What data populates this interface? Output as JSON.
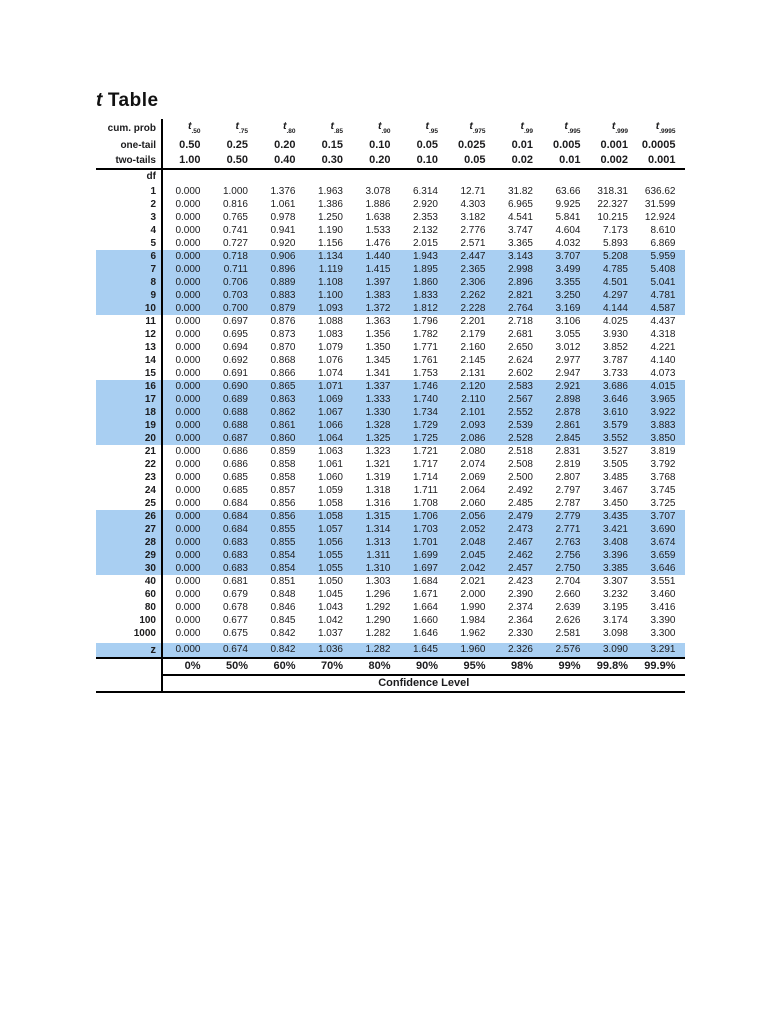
{
  "page_background": "#ffffff",
  "colors": {
    "highlight_row": "#a9cff2",
    "line": "#000000",
    "text": "#1c1c1e"
  },
  "title": {
    "t_symbol": "t",
    "rest": "Table"
  },
  "header": {
    "cum_prob_label": "cum. prob",
    "one_tail_label": "one-tail",
    "two_tails_label": "two-tails",
    "df_label": "df",
    "t_symbol": "t",
    "t_subscripts": [
      ".50",
      ".75",
      ".80",
      ".85",
      ".90",
      ".95",
      ".975",
      ".99",
      ".995",
      ".999",
      ".9995"
    ],
    "one_tail": [
      "0.50",
      "0.25",
      "0.20",
      "0.15",
      "0.10",
      "0.05",
      "0.025",
      "0.01",
      "0.005",
      "0.001",
      "0.0005"
    ],
    "two_tails": [
      "1.00",
      "0.50",
      "0.40",
      "0.30",
      "0.20",
      "0.10",
      "0.05",
      "0.02",
      "0.01",
      "0.002",
      "0.001"
    ]
  },
  "rows": [
    {
      "df": "1",
      "highlight": false,
      "values": [
        "0.000",
        "1.000",
        "1.376",
        "1.963",
        "3.078",
        "6.314",
        "12.71",
        "31.82",
        "63.66",
        "318.31",
        "636.62"
      ]
    },
    {
      "df": "2",
      "highlight": false,
      "values": [
        "0.000",
        "0.816",
        "1.061",
        "1.386",
        "1.886",
        "2.920",
        "4.303",
        "6.965",
        "9.925",
        "22.327",
        "31.599"
      ]
    },
    {
      "df": "3",
      "highlight": false,
      "values": [
        "0.000",
        "0.765",
        "0.978",
        "1.250",
        "1.638",
        "2.353",
        "3.182",
        "4.541",
        "5.841",
        "10.215",
        "12.924"
      ]
    },
    {
      "df": "4",
      "highlight": false,
      "values": [
        "0.000",
        "0.741",
        "0.941",
        "1.190",
        "1.533",
        "2.132",
        "2.776",
        "3.747",
        "4.604",
        "7.173",
        "8.610"
      ]
    },
    {
      "df": "5",
      "highlight": false,
      "values": [
        "0.000",
        "0.727",
        "0.920",
        "1.156",
        "1.476",
        "2.015",
        "2.571",
        "3.365",
        "4.032",
        "5.893",
        "6.869"
      ]
    },
    {
      "df": "6",
      "highlight": true,
      "values": [
        "0.000",
        "0.718",
        "0.906",
        "1.134",
        "1.440",
        "1.943",
        "2.447",
        "3.143",
        "3.707",
        "5.208",
        "5.959"
      ]
    },
    {
      "df": "7",
      "highlight": true,
      "values": [
        "0.000",
        "0.711",
        "0.896",
        "1.119",
        "1.415",
        "1.895",
        "2.365",
        "2.998",
        "3.499",
        "4.785",
        "5.408"
      ]
    },
    {
      "df": "8",
      "highlight": true,
      "values": [
        "0.000",
        "0.706",
        "0.889",
        "1.108",
        "1.397",
        "1.860",
        "2.306",
        "2.896",
        "3.355",
        "4.501",
        "5.041"
      ]
    },
    {
      "df": "9",
      "highlight": true,
      "values": [
        "0.000",
        "0.703",
        "0.883",
        "1.100",
        "1.383",
        "1.833",
        "2.262",
        "2.821",
        "3.250",
        "4.297",
        "4.781"
      ]
    },
    {
      "df": "10",
      "highlight": true,
      "values": [
        "0.000",
        "0.700",
        "0.879",
        "1.093",
        "1.372",
        "1.812",
        "2.228",
        "2.764",
        "3.169",
        "4.144",
        "4.587"
      ]
    },
    {
      "df": "11",
      "highlight": false,
      "values": [
        "0.000",
        "0.697",
        "0.876",
        "1.088",
        "1.363",
        "1.796",
        "2.201",
        "2.718",
        "3.106",
        "4.025",
        "4.437"
      ]
    },
    {
      "df": "12",
      "highlight": false,
      "values": [
        "0.000",
        "0.695",
        "0.873",
        "1.083",
        "1.356",
        "1.782",
        "2.179",
        "2.681",
        "3.055",
        "3.930",
        "4.318"
      ]
    },
    {
      "df": "13",
      "highlight": false,
      "values": [
        "0.000",
        "0.694",
        "0.870",
        "1.079",
        "1.350",
        "1.771",
        "2.160",
        "2.650",
        "3.012",
        "3.852",
        "4.221"
      ]
    },
    {
      "df": "14",
      "highlight": false,
      "values": [
        "0.000",
        "0.692",
        "0.868",
        "1.076",
        "1.345",
        "1.761",
        "2.145",
        "2.624",
        "2.977",
        "3.787",
        "4.140"
      ]
    },
    {
      "df": "15",
      "highlight": false,
      "values": [
        "0.000",
        "0.691",
        "0.866",
        "1.074",
        "1.341",
        "1.753",
        "2.131",
        "2.602",
        "2.947",
        "3.733",
        "4.073"
      ]
    },
    {
      "df": "16",
      "highlight": true,
      "values": [
        "0.000",
        "0.690",
        "0.865",
        "1.071",
        "1.337",
        "1.746",
        "2.120",
        "2.583",
        "2.921",
        "3.686",
        "4.015"
      ]
    },
    {
      "df": "17",
      "highlight": true,
      "values": [
        "0.000",
        "0.689",
        "0.863",
        "1.069",
        "1.333",
        "1.740",
        "2.110",
        "2.567",
        "2.898",
        "3.646",
        "3.965"
      ]
    },
    {
      "df": "18",
      "highlight": true,
      "values": [
        "0.000",
        "0.688",
        "0.862",
        "1.067",
        "1.330",
        "1.734",
        "2.101",
        "2.552",
        "2.878",
        "3.610",
        "3.922"
      ]
    },
    {
      "df": "19",
      "highlight": true,
      "values": [
        "0.000",
        "0.688",
        "0.861",
        "1.066",
        "1.328",
        "1.729",
        "2.093",
        "2.539",
        "2.861",
        "3.579",
        "3.883"
      ]
    },
    {
      "df": "20",
      "highlight": true,
      "values": [
        "0.000",
        "0.687",
        "0.860",
        "1.064",
        "1.325",
        "1.725",
        "2.086",
        "2.528",
        "2.845",
        "3.552",
        "3.850"
      ]
    },
    {
      "df": "21",
      "highlight": false,
      "values": [
        "0.000",
        "0.686",
        "0.859",
        "1.063",
        "1.323",
        "1.721",
        "2.080",
        "2.518",
        "2.831",
        "3.527",
        "3.819"
      ]
    },
    {
      "df": "22",
      "highlight": false,
      "values": [
        "0.000",
        "0.686",
        "0.858",
        "1.061",
        "1.321",
        "1.717",
        "2.074",
        "2.508",
        "2.819",
        "3.505",
        "3.792"
      ]
    },
    {
      "df": "23",
      "highlight": false,
      "values": [
        "0.000",
        "0.685",
        "0.858",
        "1.060",
        "1.319",
        "1.714",
        "2.069",
        "2.500",
        "2.807",
        "3.485",
        "3.768"
      ]
    },
    {
      "df": "24",
      "highlight": false,
      "values": [
        "0.000",
        "0.685",
        "0.857",
        "1.059",
        "1.318",
        "1.711",
        "2.064",
        "2.492",
        "2.797",
        "3.467",
        "3.745"
      ]
    },
    {
      "df": "25",
      "highlight": false,
      "values": [
        "0.000",
        "0.684",
        "0.856",
        "1.058",
        "1.316",
        "1.708",
        "2.060",
        "2.485",
        "2.787",
        "3.450",
        "3.725"
      ]
    },
    {
      "df": "26",
      "highlight": true,
      "values": [
        "0.000",
        "0.684",
        "0.856",
        "1.058",
        "1.315",
        "1.706",
        "2.056",
        "2.479",
        "2.779",
        "3.435",
        "3.707"
      ]
    },
    {
      "df": "27",
      "highlight": true,
      "values": [
        "0.000",
        "0.684",
        "0.855",
        "1.057",
        "1.314",
        "1.703",
        "2.052",
        "2.473",
        "2.771",
        "3.421",
        "3.690"
      ]
    },
    {
      "df": "28",
      "highlight": true,
      "values": [
        "0.000",
        "0.683",
        "0.855",
        "1.056",
        "1.313",
        "1.701",
        "2.048",
        "2.467",
        "2.763",
        "3.408",
        "3.674"
      ]
    },
    {
      "df": "29",
      "highlight": true,
      "values": [
        "0.000",
        "0.683",
        "0.854",
        "1.055",
        "1.311",
        "1.699",
        "2.045",
        "2.462",
        "2.756",
        "3.396",
        "3.659"
      ]
    },
    {
      "df": "30",
      "highlight": true,
      "values": [
        "0.000",
        "0.683",
        "0.854",
        "1.055",
        "1.310",
        "1.697",
        "2.042",
        "2.457",
        "2.750",
        "3.385",
        "3.646"
      ]
    },
    {
      "df": "40",
      "highlight": false,
      "values": [
        "0.000",
        "0.681",
        "0.851",
        "1.050",
        "1.303",
        "1.684",
        "2.021",
        "2.423",
        "2.704",
        "3.307",
        "3.551"
      ]
    },
    {
      "df": "60",
      "highlight": false,
      "values": [
        "0.000",
        "0.679",
        "0.848",
        "1.045",
        "1.296",
        "1.671",
        "2.000",
        "2.390",
        "2.660",
        "3.232",
        "3.460"
      ]
    },
    {
      "df": "80",
      "highlight": false,
      "values": [
        "0.000",
        "0.678",
        "0.846",
        "1.043",
        "1.292",
        "1.664",
        "1.990",
        "2.374",
        "2.639",
        "3.195",
        "3.416"
      ]
    },
    {
      "df": "100",
      "highlight": false,
      "values": [
        "0.000",
        "0.677",
        "0.845",
        "1.042",
        "1.290",
        "1.660",
        "1.984",
        "2.364",
        "2.626",
        "3.174",
        "3.390"
      ]
    },
    {
      "df": "1000",
      "highlight": false,
      "values": [
        "0.000",
        "0.675",
        "0.842",
        "1.037",
        "1.282",
        "1.646",
        "1.962",
        "2.330",
        "2.581",
        "3.098",
        "3.300"
      ]
    }
  ],
  "z_row": {
    "label": "z",
    "highlight": true,
    "values": [
      "0.000",
      "0.674",
      "0.842",
      "1.036",
      "1.282",
      "1.645",
      "1.960",
      "2.326",
      "2.576",
      "3.090",
      "3.291"
    ]
  },
  "footer": {
    "confidence_percentages": [
      "0%",
      "50%",
      "60%",
      "70%",
      "80%",
      "90%",
      "95%",
      "98%",
      "99%",
      "99.8%",
      "99.9%"
    ],
    "confidence_label": "Confidence Level"
  }
}
